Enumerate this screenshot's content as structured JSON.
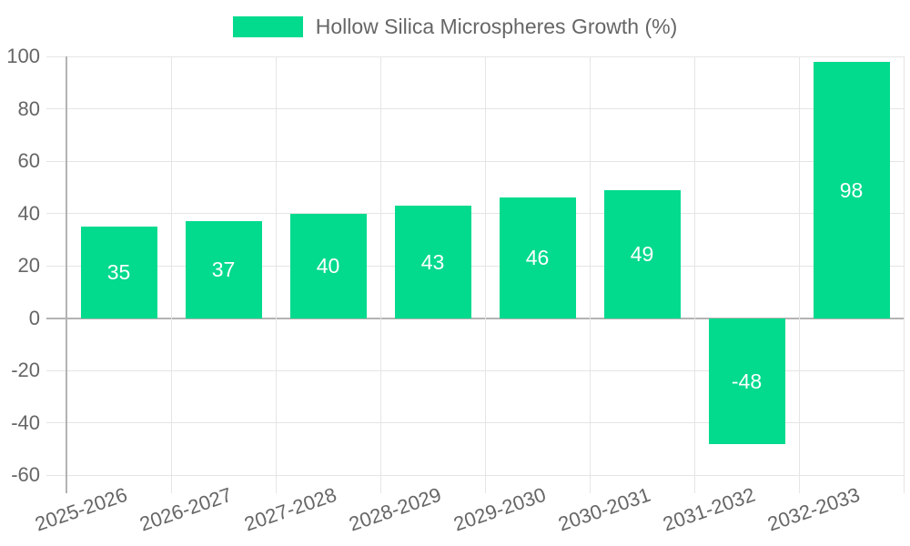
{
  "chart_data": {
    "type": "bar",
    "title": "Hollow Silica Microspheres Growth (%)",
    "legend_position": "top",
    "categories": [
      "2025-2026",
      "2026-2027",
      "2027-2028",
      "2028-2029",
      "2029-2030",
      "2030-2031",
      "2031-2032",
      "2032-2033"
    ],
    "series": [
      {
        "name": "Hollow Silica Microspheres Growth (%)",
        "values": [
          35,
          37,
          40,
          43,
          46,
          49,
          -48,
          98
        ]
      }
    ],
    "value_labels": [
      "35",
      "37",
      "40",
      "43",
      "46",
      "49",
      "-48",
      "98"
    ],
    "ytick_labels": [
      "100",
      "80",
      "60",
      "40",
      "20",
      "0",
      "-20",
      "-40",
      "-60"
    ],
    "ylim": [
      -60,
      100
    ],
    "ytick_step": 20,
    "grid": true,
    "xlabel": "",
    "ylabel": "",
    "colors": {
      "bar": "#02DA8E",
      "value_label": "#FFFFFF",
      "axis_text": "#666666",
      "gridline": "#E5E5E5",
      "zero_line": "#B3B3B3",
      "background": "#FFFFFF"
    }
  }
}
